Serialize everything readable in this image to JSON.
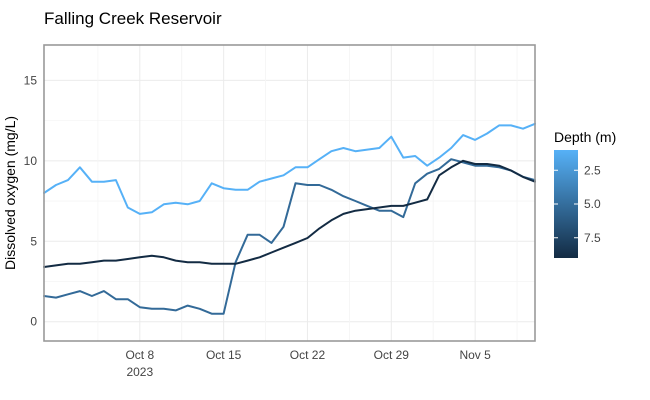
{
  "chart_data": {
    "type": "line",
    "title": "Falling Creek Reservoir",
    "xlabel": "",
    "ylabel": "Dissolved oxygen (mg/L)",
    "x_range": [
      "2023-09-30",
      "2023-11-10"
    ],
    "ylim": [
      -1.2,
      17.2
    ],
    "grid": true,
    "x_ticks": [
      {
        "date": "2023-10-08",
        "label": "Oct 8",
        "sublabel": "2023"
      },
      {
        "date": "2023-10-15",
        "label": "Oct 15",
        "sublabel": ""
      },
      {
        "date": "2023-10-22",
        "label": "Oct 22",
        "sublabel": ""
      },
      {
        "date": "2023-10-29",
        "label": "Oct 29",
        "sublabel": ""
      },
      {
        "date": "2023-11-05",
        "label": "Nov 5",
        "sublabel": ""
      }
    ],
    "y_ticks": [
      0,
      5,
      10,
      15
    ],
    "legend": {
      "title": "Depth (m)",
      "placement": "right",
      "colorbar": true,
      "range": [
        1.0,
        9.0
      ],
      "ticks": [
        "2.5",
        "5.0",
        "7.5"
      ],
      "colors": [
        "#56B1F7",
        "#132B43"
      ]
    },
    "series": [
      {
        "color": "#56B1F7",
        "x": [
          "2023-09-30",
          "2023-10-01",
          "2023-10-02",
          "2023-10-03",
          "2023-10-04",
          "2023-10-05",
          "2023-10-06",
          "2023-10-07",
          "2023-10-08",
          "2023-10-09",
          "2023-10-10",
          "2023-10-11",
          "2023-10-12",
          "2023-10-13",
          "2023-10-14",
          "2023-10-15",
          "2023-10-16",
          "2023-10-17",
          "2023-10-18",
          "2023-10-19",
          "2023-10-20",
          "2023-10-21",
          "2023-10-22",
          "2023-10-23",
          "2023-10-24",
          "2023-10-25",
          "2023-10-26",
          "2023-10-27",
          "2023-10-28",
          "2023-10-29",
          "2023-10-30",
          "2023-10-31",
          "2023-11-01",
          "2023-11-02",
          "2023-11-03",
          "2023-11-04",
          "2023-11-05",
          "2023-11-06",
          "2023-11-07",
          "2023-11-08",
          "2023-11-09",
          "2023-11-10"
        ],
        "y": [
          8.0,
          8.5,
          8.8,
          9.6,
          8.7,
          8.7,
          8.8,
          7.1,
          6.7,
          6.8,
          7.3,
          7.4,
          7.3,
          7.5,
          8.6,
          8.3,
          8.2,
          8.2,
          8.7,
          8.9,
          9.1,
          9.6,
          9.6,
          10.1,
          10.6,
          10.8,
          10.6,
          10.7,
          10.8,
          11.5,
          10.2,
          10.3,
          9.7,
          10.2,
          10.8,
          11.6,
          11.3,
          11.7,
          12.2,
          12.2,
          12.0,
          12.3
        ]
      },
      {
        "color": "#336A98",
        "x": [
          "2023-09-30",
          "2023-10-01",
          "2023-10-02",
          "2023-10-03",
          "2023-10-04",
          "2023-10-05",
          "2023-10-06",
          "2023-10-07",
          "2023-10-08",
          "2023-10-09",
          "2023-10-10",
          "2023-10-11",
          "2023-10-12",
          "2023-10-13",
          "2023-10-14",
          "2023-10-15",
          "2023-10-16",
          "2023-10-17",
          "2023-10-18",
          "2023-10-19",
          "2023-10-20",
          "2023-10-21",
          "2023-10-22",
          "2023-10-23",
          "2023-10-24",
          "2023-10-25",
          "2023-10-26",
          "2023-10-27",
          "2023-10-28",
          "2023-10-29",
          "2023-10-30",
          "2023-10-31",
          "2023-11-01",
          "2023-11-02",
          "2023-11-03",
          "2023-11-04",
          "2023-11-05",
          "2023-11-06",
          "2023-11-07",
          "2023-11-08",
          "2023-11-09",
          "2023-11-10"
        ],
        "y": [
          1.6,
          1.5,
          1.7,
          1.9,
          1.6,
          1.9,
          1.4,
          1.4,
          0.9,
          0.8,
          0.8,
          0.7,
          1.0,
          0.8,
          0.5,
          0.5,
          3.7,
          5.4,
          5.4,
          4.9,
          5.9,
          8.6,
          8.5,
          8.5,
          8.2,
          7.8,
          7.5,
          7.2,
          6.9,
          6.9,
          6.5,
          8.6,
          9.2,
          9.5,
          10.1,
          9.9,
          9.7,
          9.7,
          9.6,
          9.4,
          9.0,
          8.8
        ]
      },
      {
        "color": "#132B43",
        "x": [
          "2023-09-30",
          "2023-10-01",
          "2023-10-02",
          "2023-10-03",
          "2023-10-04",
          "2023-10-05",
          "2023-10-06",
          "2023-10-07",
          "2023-10-08",
          "2023-10-09",
          "2023-10-10",
          "2023-10-11",
          "2023-10-12",
          "2023-10-13",
          "2023-10-14",
          "2023-10-15",
          "2023-10-16",
          "2023-10-17",
          "2023-10-18",
          "2023-10-19",
          "2023-10-20",
          "2023-10-21",
          "2023-10-22",
          "2023-10-23",
          "2023-10-24",
          "2023-10-25",
          "2023-10-26",
          "2023-10-27",
          "2023-10-28",
          "2023-10-29",
          "2023-10-30",
          "2023-10-31",
          "2023-11-01",
          "2023-11-02",
          "2023-11-03",
          "2023-11-04",
          "2023-11-05",
          "2023-11-06",
          "2023-11-07",
          "2023-11-08",
          "2023-11-09",
          "2023-11-10"
        ],
        "y": [
          3.4,
          3.5,
          3.6,
          3.6,
          3.7,
          3.8,
          3.8,
          3.9,
          4.0,
          4.1,
          4.0,
          3.8,
          3.7,
          3.7,
          3.6,
          3.6,
          3.6,
          3.8,
          4.0,
          4.3,
          4.6,
          4.9,
          5.2,
          5.8,
          6.3,
          6.7,
          6.9,
          7.0,
          7.1,
          7.2,
          7.2,
          7.4,
          7.6,
          9.1,
          9.6,
          10.0,
          9.8,
          9.8,
          9.7,
          9.4,
          9.0,
          8.7
        ]
      }
    ]
  }
}
